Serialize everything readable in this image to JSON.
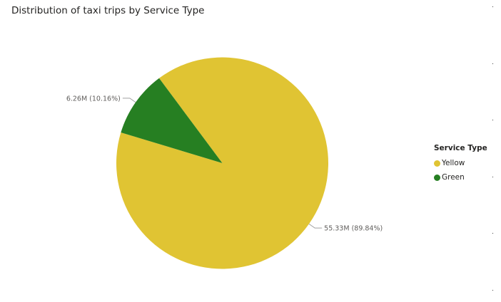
{
  "chart_data": {
    "type": "pie",
    "title": "Distribution of taxi trips by Service Type",
    "legend_title": "Service Type",
    "legend_position": "right",
    "start_angle_deg": -36.6,
    "slices": [
      {
        "label": "Yellow",
        "value": 55.33,
        "value_label": "55.33M (89.84%)",
        "percent": 89.84,
        "color": "#E0C433"
      },
      {
        "label": "Green",
        "value": 6.26,
        "value_label": "6.26M (10.16%)",
        "percent": 10.16,
        "color": "#267F22"
      }
    ]
  }
}
